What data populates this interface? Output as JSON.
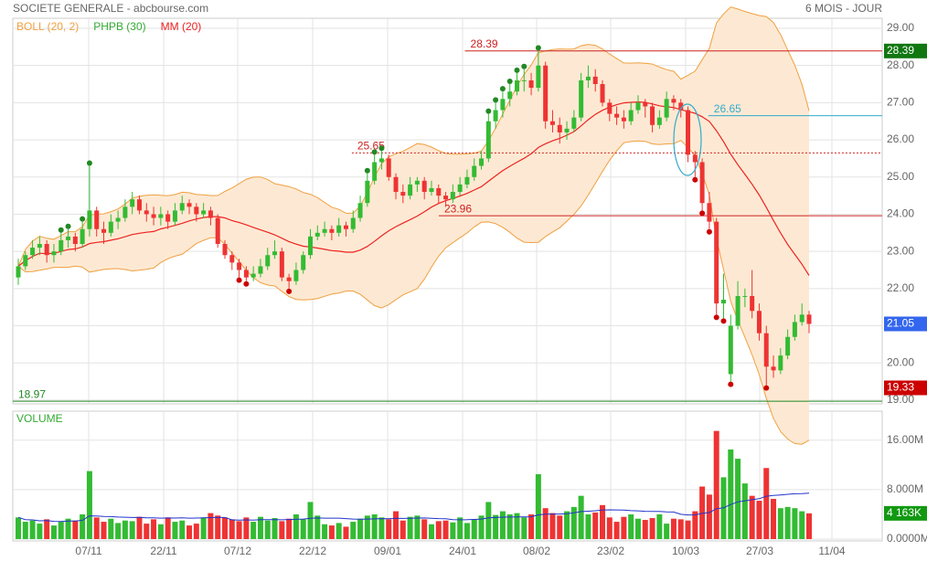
{
  "chart_data": {
    "type": "candlestick",
    "title": "SOCIETE GENERALE - abcbourse.com",
    "period": "6 MOIS - JOUR",
    "ylim": [
      18.9,
      29.27
    ],
    "yticks": [
      {
        "value": 19,
        "label": "19.00"
      },
      {
        "value": 20,
        "label": "20.00"
      },
      {
        "value": 21,
        "label": "21.00"
      },
      {
        "value": 22,
        "label": "22.00"
      },
      {
        "value": 23,
        "label": "23.00"
      },
      {
        "value": 24,
        "label": "24.00"
      },
      {
        "value": 25,
        "label": "25.00"
      },
      {
        "value": 26,
        "label": "26.00"
      },
      {
        "value": 27,
        "label": "27.00"
      },
      {
        "value": 28,
        "label": "28.00"
      },
      {
        "value": 29,
        "label": "29.00"
      }
    ],
    "xticks": [
      "07/11",
      "22/11",
      "07/12",
      "22/12",
      "09/01",
      "24/01",
      "08/02",
      "23/02",
      "10/03",
      "27/03",
      "11/04"
    ],
    "grid": true,
    "up_color": "#33bb33",
    "down_color": "#ee3333",
    "indicators": {
      "boll": {
        "label": "BOLL (20, 2)",
        "period": 20,
        "k": 2,
        "color": "#f0a040",
        "fill": "#fde9d3"
      },
      "phpb": {
        "label": "PHPB (30)",
        "period": 30,
        "up_color": "#228822",
        "down_color": "#cc0000"
      },
      "mm": {
        "label": "MM (20)",
        "period": 20,
        "color": "#ee2222"
      }
    },
    "levels": [
      {
        "value": 28.39,
        "color": "#cc2222",
        "style": "solid",
        "start": 0.52
      },
      {
        "value": 25.65,
        "color": "#cc2222",
        "style": "dotted",
        "start": 0.39
      },
      {
        "value": 23.96,
        "color": "#cc2222",
        "style": "solid",
        "start": 0.49
      },
      {
        "value": 26.65,
        "color": "#33aacc",
        "style": "solid",
        "start": 0.8
      },
      {
        "value": 18.97,
        "color": "#228822",
        "style": "solid",
        "start": 0
      }
    ],
    "price_markers": [
      {
        "value": 28.39,
        "color": "#117711"
      },
      {
        "value": 19.33,
        "color": "#cc0000"
      }
    ],
    "last_color": "#3366ee",
    "candles": [
      [
        22.3,
        22.8,
        22.1,
        22.6
      ],
      [
        22.6,
        23.0,
        22.5,
        22.9
      ],
      [
        22.9,
        23.3,
        22.8,
        23.1
      ],
      [
        23.1,
        23.4,
        22.9,
        23.2
      ],
      [
        23.2,
        23.3,
        22.7,
        22.9
      ],
      [
        22.9,
        23.2,
        22.7,
        23.0
      ],
      [
        23.0,
        23.5,
        22.9,
        23.3
      ],
      [
        23.3,
        23.6,
        23.1,
        23.4
      ],
      [
        23.4,
        23.5,
        23.0,
        23.2
      ],
      [
        23.2,
        23.8,
        23.1,
        23.6
      ],
      [
        23.6,
        25.3,
        23.4,
        24.1
      ],
      [
        24.1,
        24.2,
        23.4,
        23.6
      ],
      [
        23.6,
        23.8,
        23.2,
        23.5
      ],
      [
        23.5,
        24.0,
        23.4,
        23.8
      ],
      [
        23.8,
        24.1,
        23.6,
        23.9
      ],
      [
        23.9,
        24.4,
        23.8,
        24.2
      ],
      [
        24.2,
        24.6,
        24.0,
        24.4
      ],
      [
        24.4,
        24.5,
        24.0,
        24.1
      ],
      [
        24.1,
        24.3,
        23.8,
        24.0
      ],
      [
        24.0,
        24.2,
        23.7,
        23.9
      ],
      [
        23.9,
        24.2,
        23.7,
        24.0
      ],
      [
        24.0,
        24.1,
        23.6,
        23.8
      ],
      [
        23.8,
        24.3,
        23.7,
        24.1
      ],
      [
        24.1,
        24.5,
        24.0,
        24.3
      ],
      [
        24.3,
        24.4,
        24.0,
        24.2
      ],
      [
        24.2,
        24.3,
        23.8,
        24.0
      ],
      [
        24.0,
        24.3,
        23.9,
        24.1
      ],
      [
        24.1,
        24.2,
        23.7,
        23.9
      ],
      [
        23.9,
        24.0,
        23.1,
        23.2
      ],
      [
        23.2,
        23.3,
        22.8,
        22.9
      ],
      [
        22.9,
        23.0,
        22.5,
        22.7
      ],
      [
        22.7,
        22.8,
        22.3,
        22.5
      ],
      [
        22.5,
        22.6,
        22.2,
        22.3
      ],
      [
        22.3,
        22.6,
        22.2,
        22.4
      ],
      [
        22.4,
        22.8,
        22.3,
        22.6
      ],
      [
        22.6,
        23.1,
        22.5,
        22.9
      ],
      [
        22.9,
        23.3,
        22.8,
        23.0
      ],
      [
        23.0,
        23.1,
        22.2,
        22.3
      ],
      [
        22.3,
        22.4,
        22.0,
        22.2
      ],
      [
        22.2,
        22.7,
        22.1,
        22.5
      ],
      [
        22.5,
        23.0,
        22.4,
        22.9
      ],
      [
        22.9,
        23.6,
        22.8,
        23.4
      ],
      [
        23.4,
        23.7,
        23.3,
        23.5
      ],
      [
        23.5,
        23.8,
        23.4,
        23.6
      ],
      [
        23.6,
        23.7,
        23.3,
        23.5
      ],
      [
        23.5,
        23.9,
        23.4,
        23.7
      ],
      [
        23.7,
        23.8,
        23.4,
        23.6
      ],
      [
        23.6,
        24.1,
        23.5,
        23.9
      ],
      [
        23.9,
        24.5,
        23.8,
        24.3
      ],
      [
        24.3,
        25.1,
        24.2,
        24.9
      ],
      [
        24.9,
        25.6,
        24.8,
        25.4
      ],
      [
        25.4,
        25.7,
        25.2,
        25.5
      ],
      [
        25.5,
        25.6,
        24.9,
        25.0
      ],
      [
        25.0,
        25.1,
        24.4,
        24.6
      ],
      [
        24.6,
        24.8,
        24.3,
        24.5
      ],
      [
        24.5,
        25.0,
        24.4,
        24.8
      ],
      [
        24.8,
        25.0,
        24.6,
        24.9
      ],
      [
        24.9,
        25.0,
        24.4,
        24.6
      ],
      [
        24.6,
        24.9,
        24.5,
        24.7
      ],
      [
        24.7,
        24.8,
        24.3,
        24.5
      ],
      [
        24.5,
        24.6,
        24.2,
        24.4
      ],
      [
        24.4,
        24.8,
        24.3,
        24.6
      ],
      [
        24.6,
        25.0,
        24.5,
        24.8
      ],
      [
        24.8,
        25.2,
        24.7,
        25.0
      ],
      [
        25.0,
        25.5,
        24.9,
        25.3
      ],
      [
        25.3,
        25.7,
        25.2,
        25.5
      ],
      [
        25.5,
        26.7,
        25.4,
        26.5
      ],
      [
        26.5,
        27.0,
        26.3,
        26.8
      ],
      [
        26.8,
        27.3,
        26.6,
        27.1
      ],
      [
        27.1,
        27.5,
        26.9,
        27.3
      ],
      [
        27.3,
        27.8,
        27.2,
        27.6
      ],
      [
        27.6,
        27.9,
        27.3,
        27.6
      ],
      [
        27.6,
        27.8,
        27.2,
        27.4
      ],
      [
        27.4,
        28.4,
        27.3,
        28.0
      ],
      [
        28.0,
        28.1,
        26.3,
        26.5
      ],
      [
        26.5,
        26.8,
        26.2,
        26.4
      ],
      [
        26.4,
        26.6,
        25.9,
        26.2
      ],
      [
        26.2,
        26.5,
        26.0,
        26.3
      ],
      [
        26.3,
        26.8,
        26.2,
        26.6
      ],
      [
        26.6,
        27.8,
        26.5,
        27.6
      ],
      [
        27.6,
        28.0,
        27.4,
        27.7
      ],
      [
        27.7,
        27.9,
        27.3,
        27.5
      ],
      [
        27.5,
        27.6,
        26.9,
        27.0
      ],
      [
        27.0,
        27.1,
        26.5,
        26.7
      ],
      [
        26.7,
        26.9,
        26.4,
        26.6
      ],
      [
        26.6,
        26.8,
        26.3,
        26.5
      ],
      [
        26.5,
        27.0,
        26.4,
        26.8
      ],
      [
        26.8,
        27.2,
        26.7,
        27.0
      ],
      [
        27.0,
        27.1,
        26.6,
        26.9
      ],
      [
        26.9,
        27.0,
        26.2,
        26.4
      ],
      [
        26.4,
        26.8,
        26.3,
        26.6
      ],
      [
        26.6,
        27.3,
        26.5,
        27.1
      ],
      [
        27.1,
        27.2,
        26.8,
        27.0
      ],
      [
        27.0,
        27.1,
        26.6,
        26.8
      ],
      [
        26.8,
        26.9,
        25.4,
        25.6
      ],
      [
        25.6,
        25.7,
        25.0,
        25.4
      ],
      [
        25.4,
        25.5,
        24.1,
        24.3
      ],
      [
        24.3,
        24.6,
        23.6,
        23.8
      ],
      [
        23.8,
        23.9,
        21.3,
        21.6
      ],
      [
        21.6,
        22.4,
        21.2,
        21.7
      ],
      [
        19.7,
        21.3,
        19.5,
        21.0
      ],
      [
        21.0,
        22.2,
        20.9,
        21.8
      ],
      [
        21.8,
        22.0,
        21.5,
        21.8
      ],
      [
        21.8,
        22.5,
        21.2,
        21.4
      ],
      [
        21.4,
        21.6,
        20.6,
        20.8
      ],
      [
        20.8,
        21.0,
        19.4,
        19.9
      ],
      [
        19.9,
        20.2,
        19.6,
        19.8
      ],
      [
        19.8,
        20.4,
        19.7,
        20.2
      ],
      [
        20.2,
        20.9,
        20.1,
        20.7
      ],
      [
        20.7,
        21.3,
        20.6,
        21.1
      ],
      [
        21.1,
        21.6,
        21.0,
        21.3
      ],
      [
        21.3,
        21.4,
        20.8,
        21.05
      ]
    ],
    "volume": {
      "label": "VOLUME",
      "color": "#2233cc",
      "vlim": [
        0,
        20.7
      ],
      "ticks": [
        {
          "value": 0,
          "label": "0.0000M"
        },
        {
          "value": 8,
          "label": "8.000M"
        },
        {
          "value": 16,
          "label": "16.00M"
        }
      ],
      "last_label": "4 163K",
      "values": [
        3.5,
        2.8,
        3.0,
        2.5,
        3.2,
        2.2,
        2.8,
        3.3,
        3.0,
        4.0,
        11.0,
        3.5,
        2.8,
        3.3,
        2.6,
        3.0,
        2.9,
        3.6,
        2.5,
        3.2,
        2.4,
        3.5,
        2.8,
        3.0,
        2.2,
        2.5,
        3.5,
        4.2,
        3.8,
        3.5,
        3.2,
        2.9,
        3.5,
        2.8,
        3.6,
        3.0,
        3.4,
        2.9,
        3.3,
        4.0,
        3.2,
        6.0,
        3.8,
        2.4,
        2.2,
        2.6,
        2.0,
        2.8,
        3.3,
        3.8,
        4.0,
        3.5,
        3.2,
        4.5,
        3.0,
        3.6,
        3.8,
        3.2,
        2.4,
        2.9,
        3.0,
        2.7,
        3.5,
        2.6,
        3.2,
        3.8,
        6.0,
        3.9,
        4.5,
        4.0,
        4.2,
        3.5,
        4.0,
        10.5,
        5.0,
        4.2,
        3.8,
        4.5,
        5.2,
        7.0,
        4.0,
        4.3,
        5.5,
        3.5,
        2.8,
        3.6,
        4.0,
        3.3,
        3.1,
        3.4,
        4.0,
        2.5,
        3.3,
        3.2,
        3.0,
        4.5,
        8.5,
        7.2,
        17.5,
        10.0,
        14.5,
        13.0,
        9.0,
        7.0,
        6.2,
        11.5,
        6.5,
        5.0,
        5.2,
        5.0,
        4.5,
        4.163
      ]
    }
  }
}
